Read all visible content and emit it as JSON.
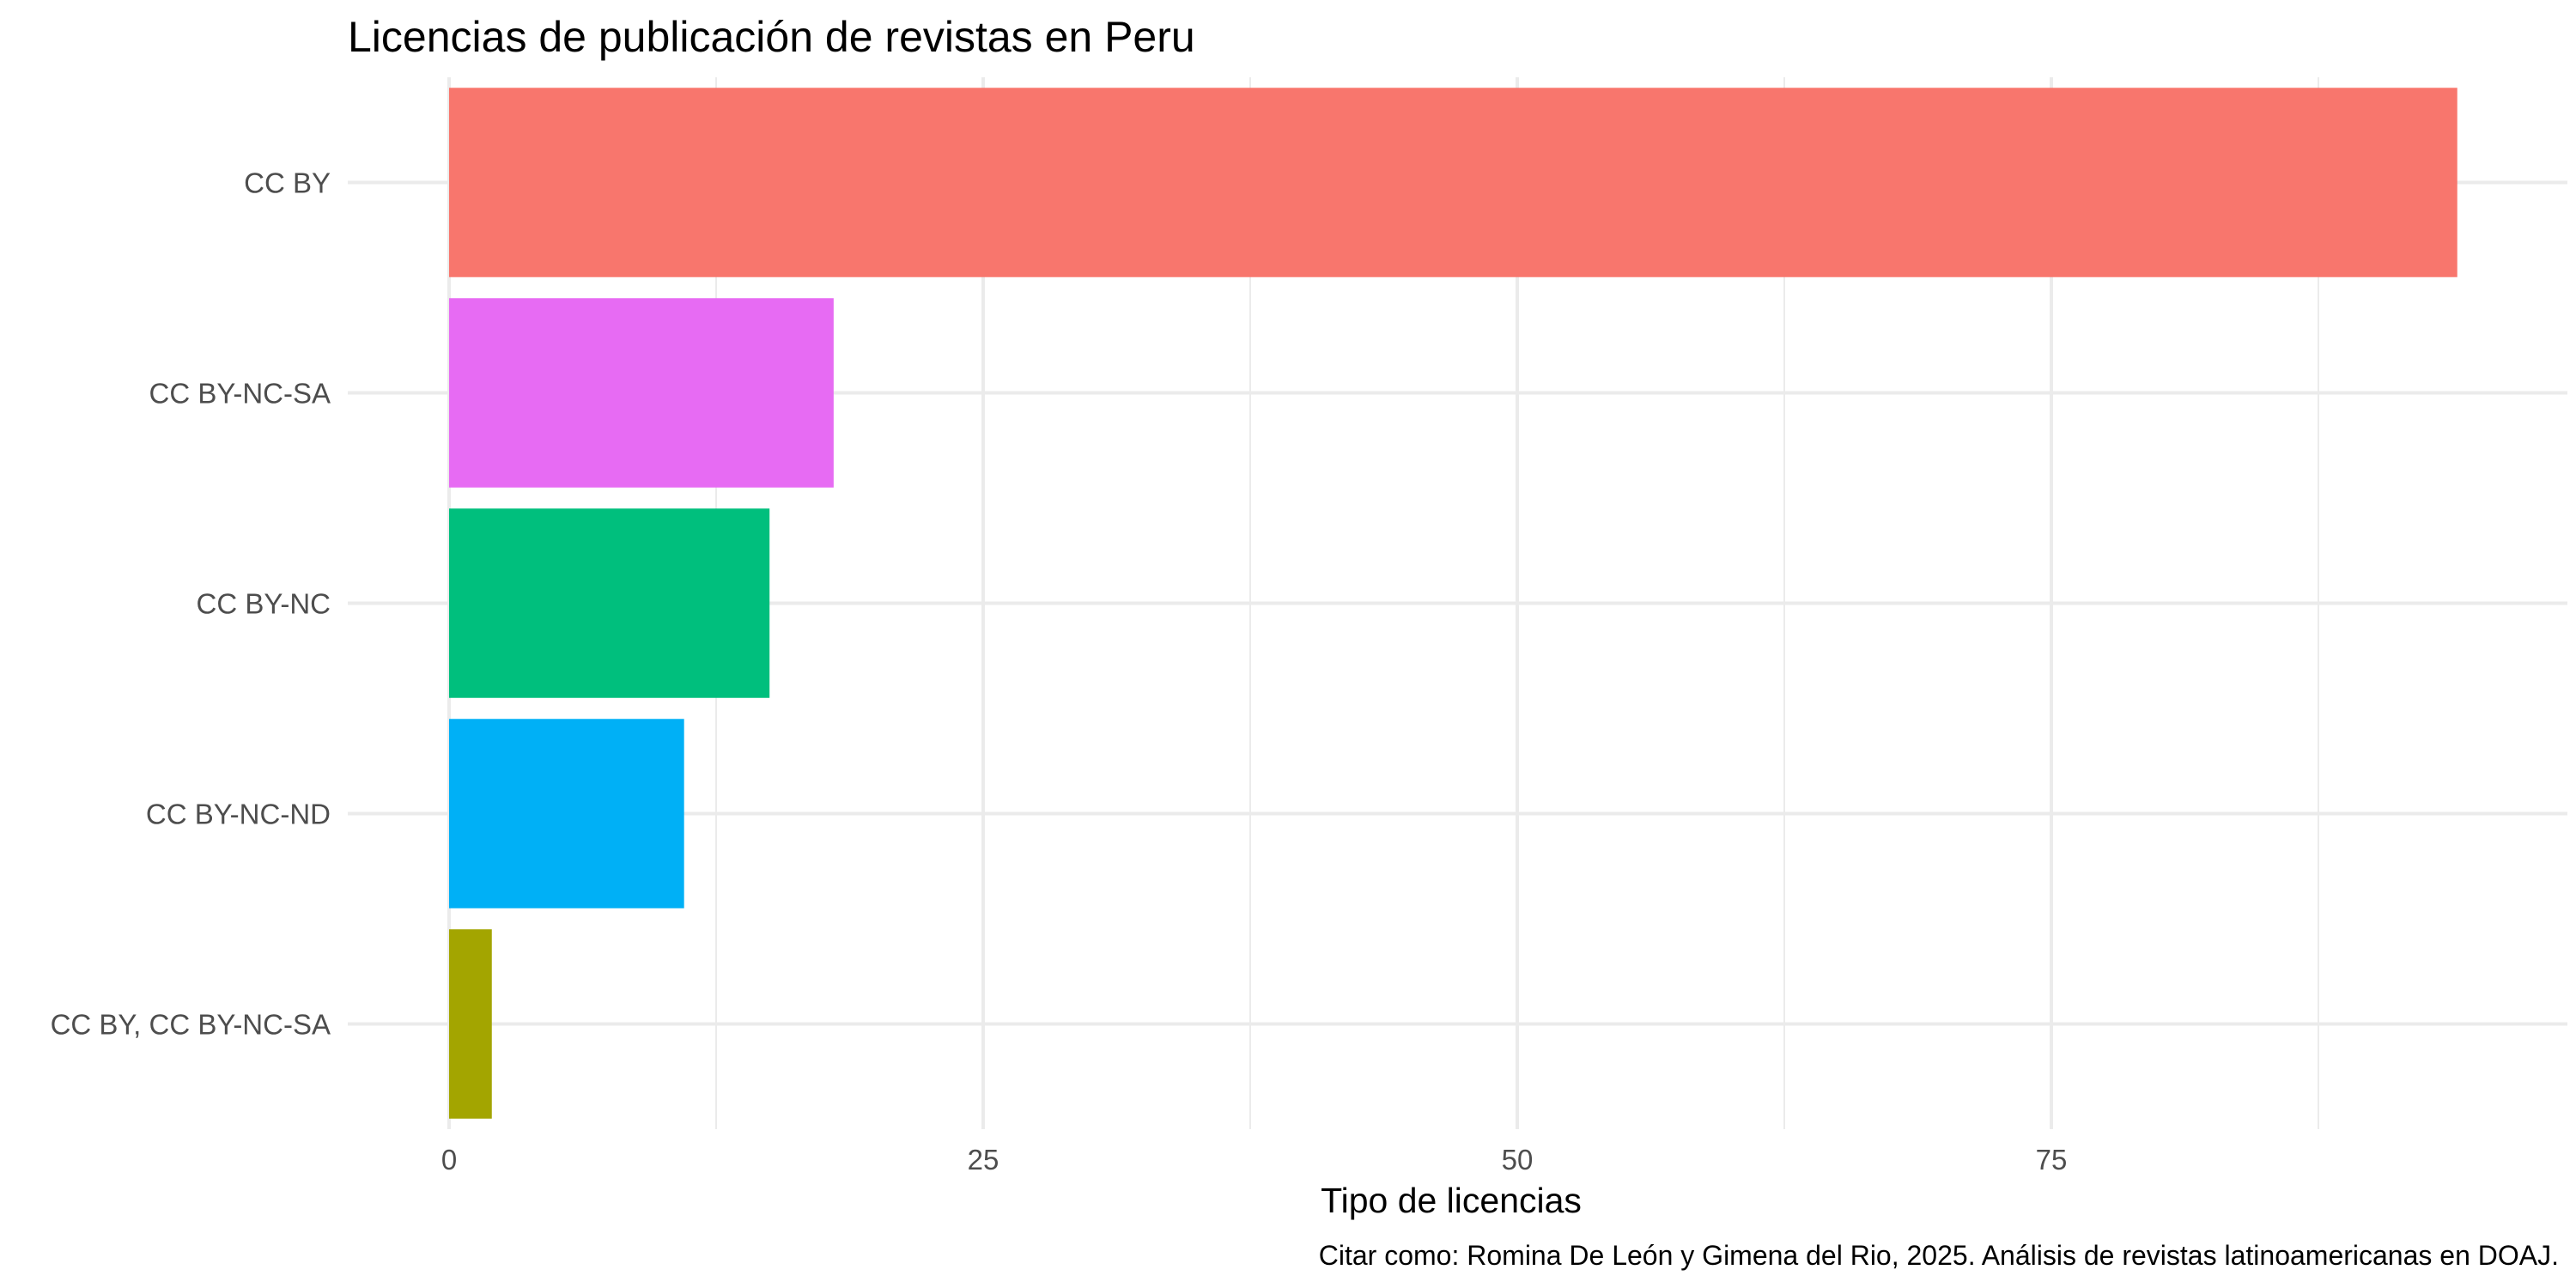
{
  "chart_data": {
    "type": "bar",
    "orientation": "horizontal",
    "title": "Licencias de publicación de revistas en Peru",
    "xlabel": "Tipo de licencias",
    "ylabel": "",
    "caption": "Citar como: Romina De León y Gimena del Rio, 2025. Análisis de revistas latinoamericanas en DOAJ.",
    "categories": [
      "CC BY",
      "CC BY-NC-SA",
      "CC BY-NC",
      "CC BY-NC-ND",
      "CC BY, CC BY-NC-SA"
    ],
    "values": [
      94,
      18,
      15,
      11,
      2
    ],
    "colors": [
      "#F8766D",
      "#E76BF3",
      "#00BF7D",
      "#00B0F6",
      "#A3A500"
    ],
    "xlim": [
      0,
      98
    ],
    "xticks": [
      0,
      25,
      50,
      75
    ],
    "xtick_labels": [
      "0",
      "25",
      "50",
      "75"
    ],
    "grid": true,
    "legend": "none"
  }
}
